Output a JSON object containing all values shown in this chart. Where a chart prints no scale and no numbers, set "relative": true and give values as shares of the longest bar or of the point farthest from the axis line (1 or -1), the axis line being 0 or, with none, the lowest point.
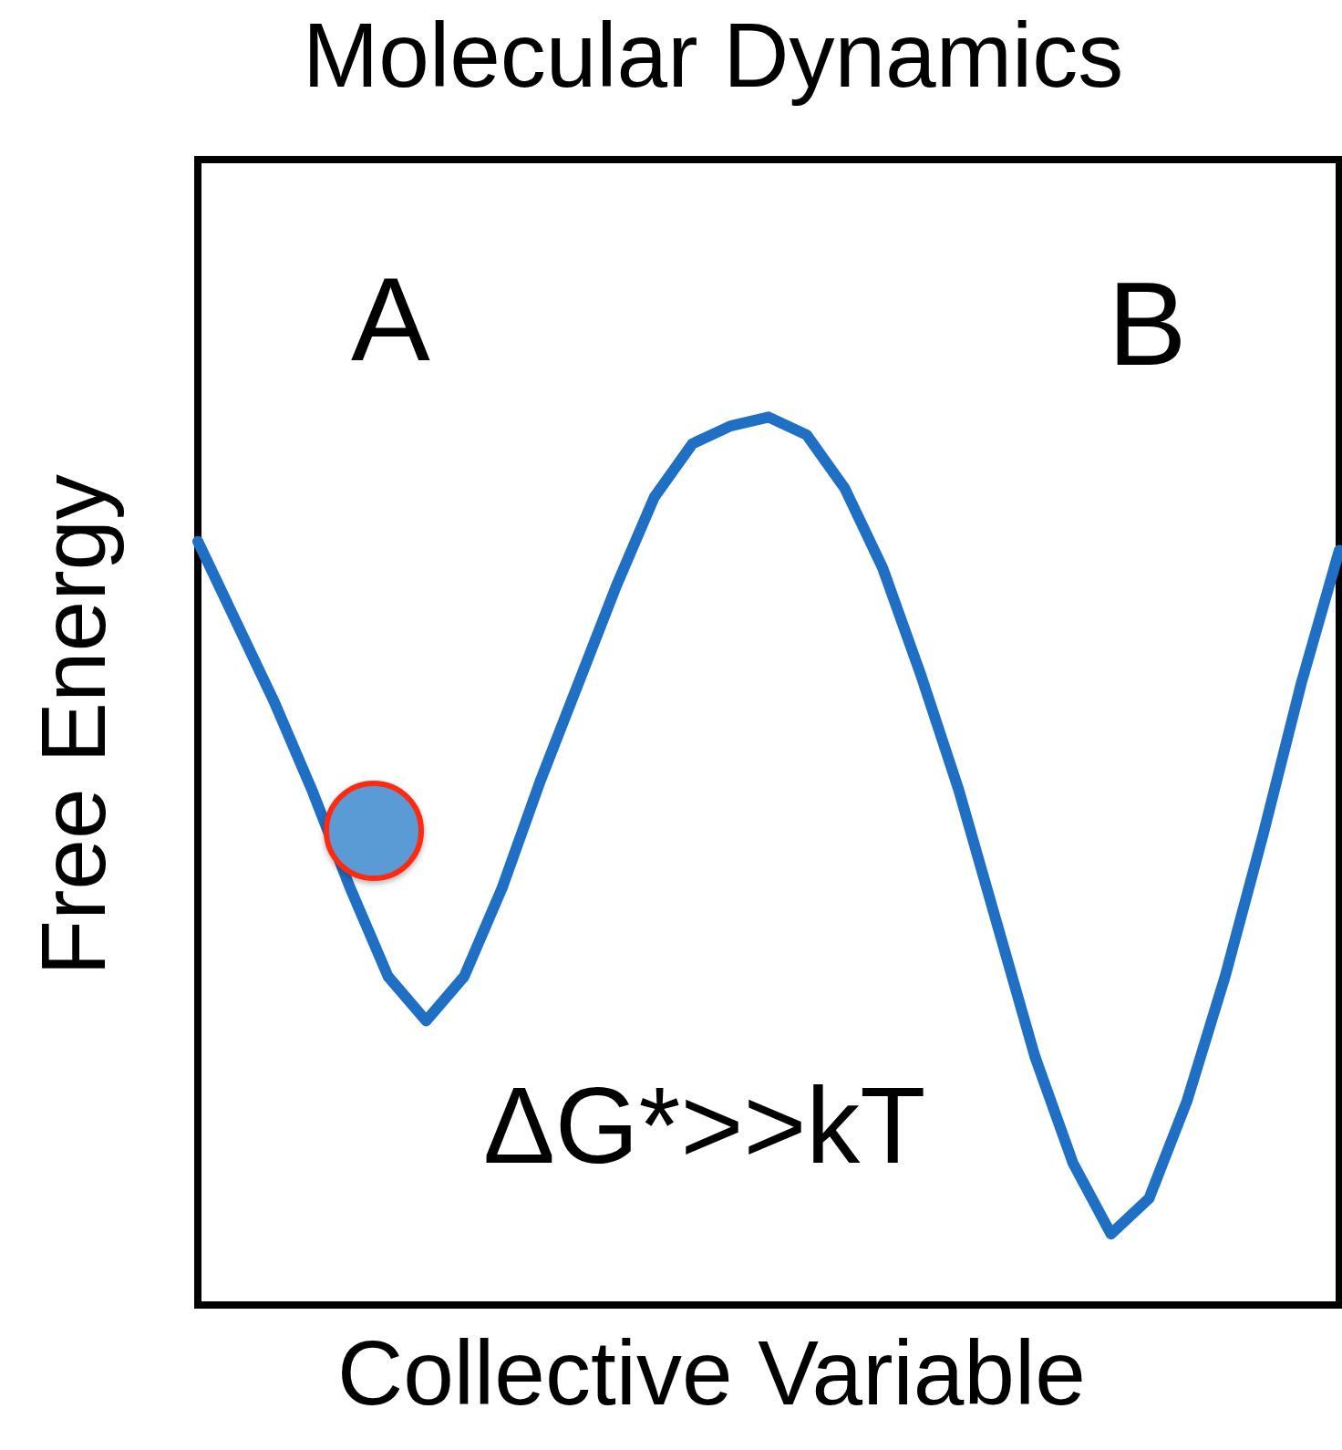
{
  "chart_data": {
    "type": "line",
    "title": "Molecular Dynamics",
    "xlabel": "Collective Variable",
    "ylabel": "Free Energy",
    "relative": true,
    "grid": false,
    "categories": [
      null,
      null,
      null,
      null,
      null,
      null,
      null,
      null,
      null,
      null,
      null,
      null,
      null,
      null,
      null,
      null,
      null,
      null,
      null,
      null,
      null,
      null,
      null,
      null,
      null,
      null,
      null,
      null,
      null,
      null,
      null
    ],
    "series": [
      {
        "color": "#1f6fc5",
        "values": [
          0.86,
          0.77,
          0.68,
          0.58,
          0.47,
          0.37,
          0.32,
          0.37,
          0.47,
          0.59,
          0.7,
          0.81,
          0.91,
          0.97,
          0.99,
          1,
          0.98,
          0.92,
          0.83,
          0.71,
          0.58,
          0.43,
          0.28,
          0.16,
          0.08,
          0.12,
          0.23,
          0.37,
          0.53,
          0.7,
          0.85
        ]
      }
    ],
    "annotations": [
      "A",
      "B",
      "ΔG*>>kT"
    ]
  }
}
